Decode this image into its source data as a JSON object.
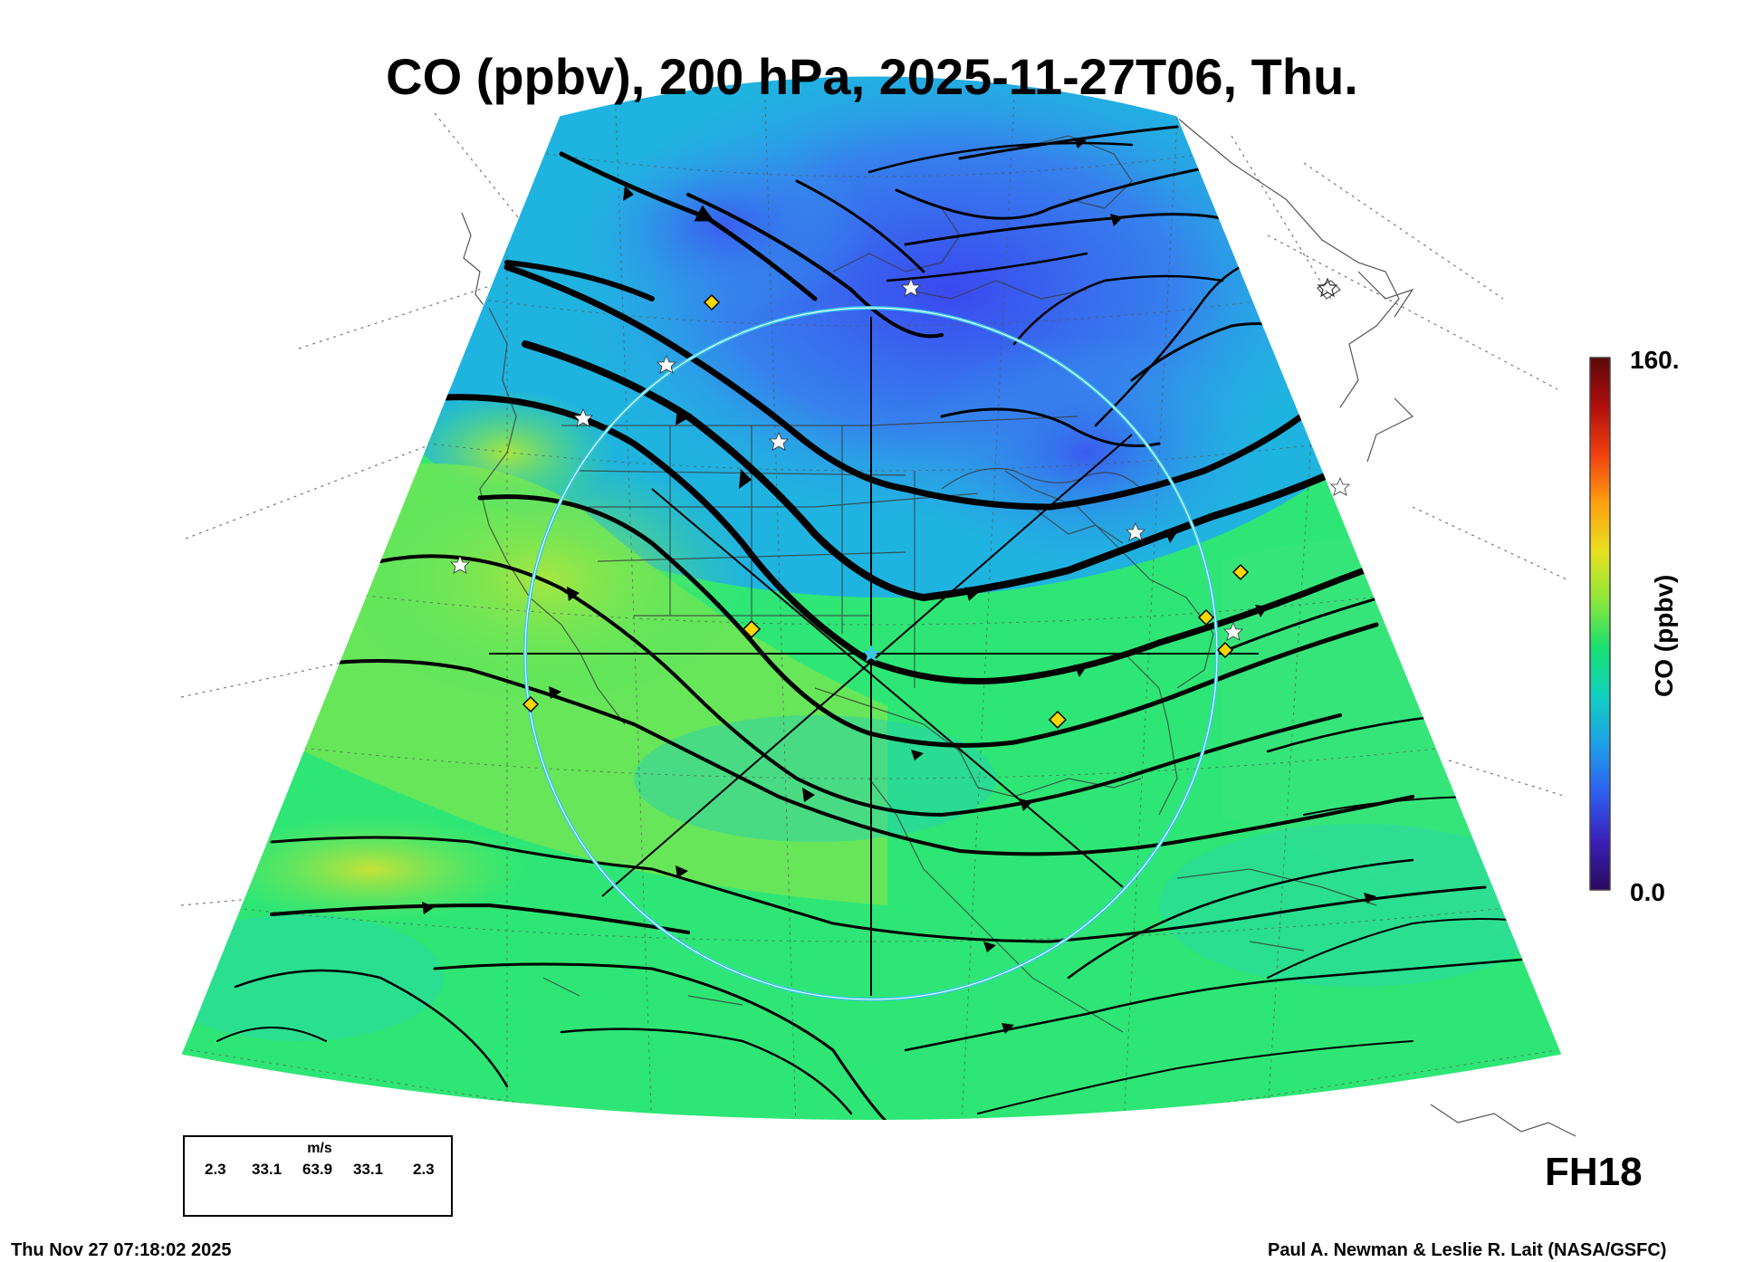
{
  "title": "CO (ppbv), 200 hPa, 2025-11-27T06, Thu.",
  "colorbar": {
    "title": "CO (ppbv)",
    "max_label": "160.",
    "min_label": "0.0",
    "colors": [
      "#2a0a5e",
      "#3a1fb8",
      "#2e5ff0",
      "#1e9fe8",
      "#10d0c0",
      "#18e070",
      "#8ee83a",
      "#e8e020",
      "#ffa010",
      "#f04010",
      "#b00e0e",
      "#5c0808"
    ]
  },
  "forecast_hour": "FH18",
  "legend": {
    "unit": "m/s",
    "values": [
      "2.3",
      "33.1",
      "63.9",
      "33.1",
      "2.3"
    ]
  },
  "footer": {
    "timestamp": "Thu Nov 27 07:18:02 2025",
    "credit": "Paul A. Newman & Leslie R. Lait (NASA/GSFC)"
  },
  "colors": {
    "low_co": "#3650ee",
    "mid_co": "#1fb6dc",
    "high_co": "#2ee87a",
    "peak_co": "#b8e43c",
    "streamline": "#000000",
    "circle": "#3cc8e6",
    "marker_diamond": "#ffd700",
    "marker_star": "#ffffff"
  },
  "markers": {
    "diamond_count": 7,
    "star_count": 9
  }
}
